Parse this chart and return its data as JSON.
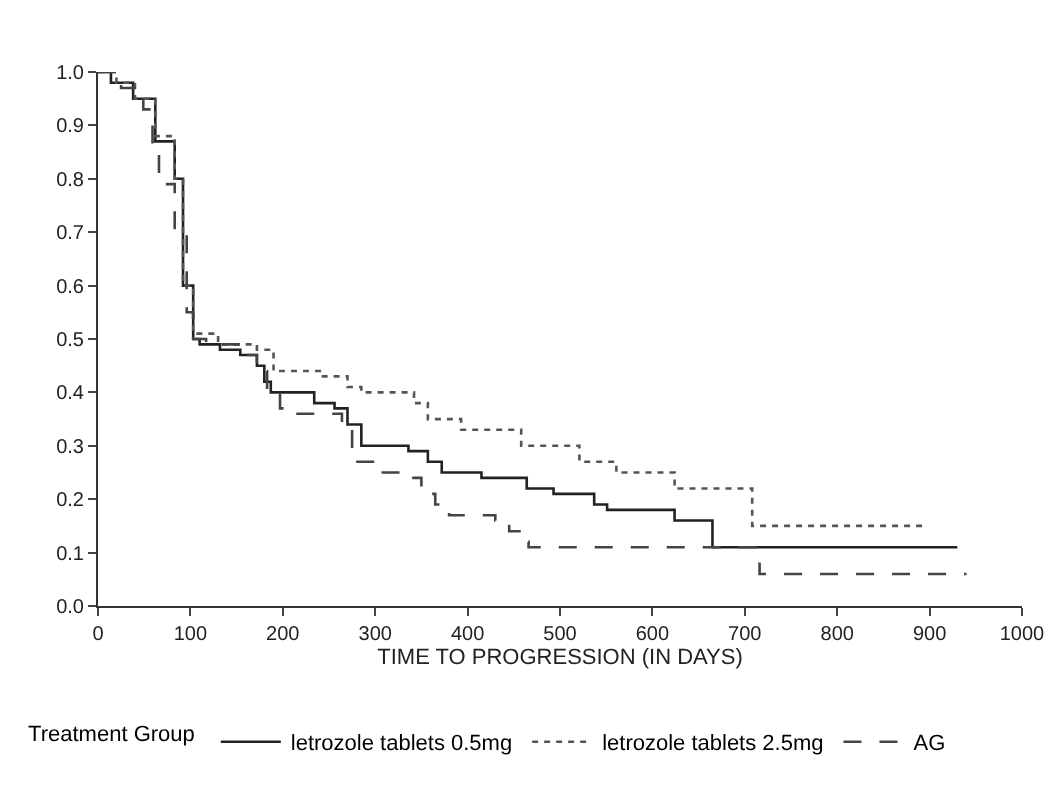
{
  "chart_data": {
    "type": "step",
    "xlabel": "TIME TO PROGRESSION (IN DAYS)",
    "legend_title": "Treatment Group",
    "legend": "bottom",
    "grid": false,
    "marker": "none",
    "xlim": [
      0,
      1000
    ],
    "xticks": [
      0,
      100,
      200,
      300,
      400,
      500,
      600,
      700,
      800,
      900,
      1000
    ],
    "ylim": [
      0,
      1
    ],
    "yticks": [
      {
        "value": 0,
        "label": "0.0"
      },
      0.1,
      0.2,
      0.3,
      0.4,
      0.5,
      0.6,
      0.7,
      0.8,
      0.9,
      {
        "value": 1,
        "label": "1.0"
      }
    ],
    "series": [
      {
        "name": "letrozole tablets 0.5mg",
        "color": "#222222",
        "line_style": "solid",
        "x": [
          0,
          14,
          38,
          62,
          83,
          92,
          103,
          110,
          132,
          154,
          172,
          180,
          187,
          234,
          256,
          270,
          285,
          336,
          357,
          372,
          415,
          464,
          493,
          537,
          551,
          624,
          665,
          930
        ],
        "values": [
          1,
          0.98,
          0.95,
          0.87,
          0.8,
          0.6,
          0.5,
          0.49,
          0.48,
          0.47,
          0.45,
          0.42,
          0.4,
          0.38,
          0.37,
          0.34,
          0.3,
          0.29,
          0.27,
          0.25,
          0.24,
          0.22,
          0.21,
          0.19,
          0.18,
          0.16,
          0.11,
          0.11
        ]
      },
      {
        "name": "letrozole tablets 2.5mg",
        "color": "#555555",
        "line_style": "dotted",
        "x": [
          0,
          20,
          40,
          62,
          83,
          92,
          103,
          130,
          172,
          190,
          240,
          270,
          285,
          342,
          357,
          393,
          458,
          521,
          561,
          624,
          708,
          893
        ],
        "values": [
          1,
          0.98,
          0.95,
          0.88,
          0.8,
          0.6,
          0.51,
          0.49,
          0.48,
          0.44,
          0.43,
          0.41,
          0.4,
          0.38,
          0.35,
          0.33,
          0.3,
          0.27,
          0.25,
          0.22,
          0.15,
          0.15
        ]
      },
      {
        "name": "AG",
        "color": "#444444",
        "line_style": "dashed",
        "x": [
          0,
          25,
          49,
          59,
          66,
          83,
          96,
          103,
          117,
          160,
          172,
          183,
          197,
          212,
          264,
          275,
          300,
          336,
          350,
          365,
          380,
          430,
          445,
          458,
          466,
          716,
          940
        ],
        "values": [
          1,
          0.97,
          0.93,
          0.85,
          0.79,
          0.7,
          0.55,
          0.5,
          0.49,
          0.47,
          0.44,
          0.4,
          0.37,
          0.36,
          0.33,
          0.27,
          0.25,
          0.24,
          0.21,
          0.19,
          0.17,
          0.16,
          0.14,
          0.12,
          0.11,
          0.06,
          0.06
        ]
      }
    ]
  }
}
